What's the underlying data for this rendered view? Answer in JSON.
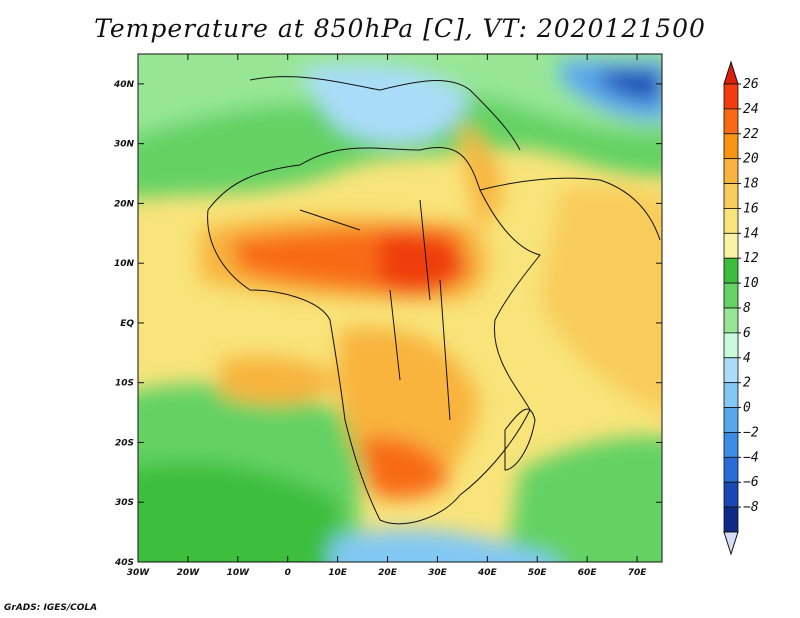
{
  "title": "Temperature at 850hPa [C], VT: 2020121500",
  "credit": "GrADS: IGES/COLA",
  "map": {
    "lon_range": [
      -30,
      75
    ],
    "lat_range": [
      -40,
      45
    ],
    "lon_ticks": [
      {
        "value": -30,
        "label": "30W"
      },
      {
        "value": -20,
        "label": "20W"
      },
      {
        "value": -10,
        "label": "10W"
      },
      {
        "value": 0,
        "label": "0"
      },
      {
        "value": 10,
        "label": "10E"
      },
      {
        "value": 20,
        "label": "20E"
      },
      {
        "value": 30,
        "label": "30E"
      },
      {
        "value": 40,
        "label": "40E"
      },
      {
        "value": 50,
        "label": "50E"
      },
      {
        "value": 60,
        "label": "60E"
      },
      {
        "value": 70,
        "label": "70E"
      }
    ],
    "lat_ticks": [
      {
        "value": 40,
        "label": "40N"
      },
      {
        "value": 30,
        "label": "30N"
      },
      {
        "value": 20,
        "label": "20N"
      },
      {
        "value": 10,
        "label": "10N"
      },
      {
        "value": 0,
        "label": "EQ"
      },
      {
        "value": -10,
        "label": "10S"
      },
      {
        "value": -20,
        "label": "20S"
      },
      {
        "value": -30,
        "label": "30S"
      },
      {
        "value": -40,
        "label": "40S"
      }
    ]
  },
  "colorbar": {
    "levels": [
      26,
      24,
      22,
      20,
      18,
      16,
      14,
      12,
      10,
      8,
      6,
      4,
      2,
      0,
      -2,
      -4,
      -6,
      -8
    ],
    "labels": [
      "26",
      "24",
      "22",
      "20",
      "18",
      "16",
      "14",
      "12",
      "10",
      "8",
      "6",
      "4",
      "2",
      "0",
      "−2",
      "−4",
      "−6",
      "−8"
    ],
    "colors": [
      "#f03c10",
      "#f86a14",
      "#f89614",
      "#f8b43c",
      "#f8cc5a",
      "#f8e47a",
      "#f8f4a4",
      "#3cbe3c",
      "#64d264",
      "#96e696",
      "#c8fadc",
      "#aadcfa",
      "#82c8f4",
      "#5aa6ec",
      "#3c8ce6",
      "#2a6cd6",
      "#1848b4",
      "#0e2a86"
    ],
    "top_color": "#dc1e0a",
    "bottom_color": "#d7dcf8"
  }
}
